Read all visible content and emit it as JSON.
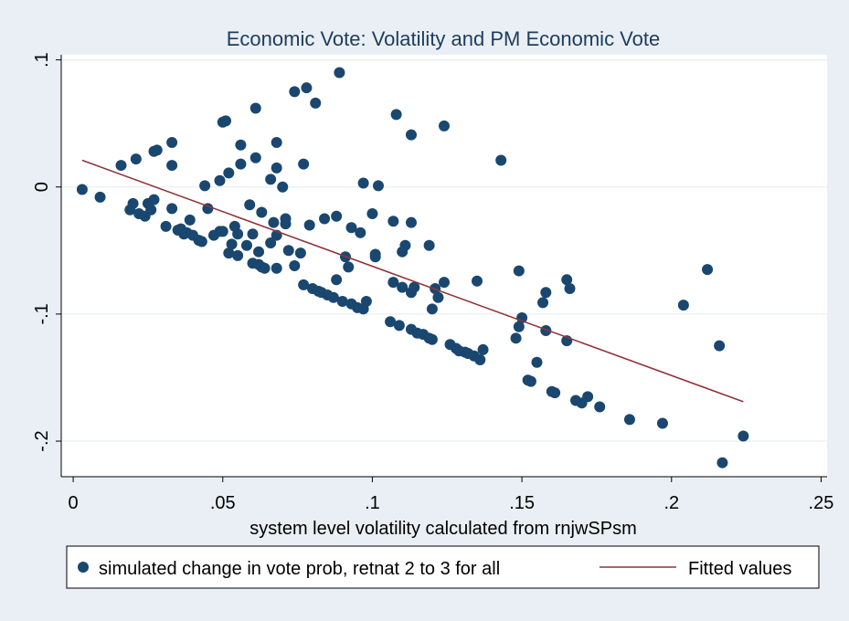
{
  "chart_data": {
    "type": "scatter",
    "title": "Economic Vote: Volatility and PM Economic Vote",
    "xlabel": "system level volatility calculated from rnjwSPsm",
    "ylabel": "",
    "xlim": [
      -0.004,
      0.252
    ],
    "ylim": [
      -0.228,
      0.104
    ],
    "x_ticks": [
      0,
      0.05,
      0.1,
      0.15,
      0.2,
      0.25
    ],
    "x_tick_labels": [
      "0",
      ".05",
      ".1",
      ".15",
      ".2",
      ".25"
    ],
    "y_ticks": [
      0.1,
      0,
      -0.1,
      -0.2
    ],
    "y_tick_labels": [
      ".1",
      "0",
      "-.1",
      "-.2"
    ],
    "grid": "horizontal",
    "legend_position": "bottom",
    "colors": {
      "background": "#e9eff4",
      "plot_area": "#ffffff",
      "points": "#1a476f",
      "line": "#90353b",
      "text": "#000000",
      "title": "#1e3c5c",
      "grid": "#e9eff4"
    },
    "series": [
      {
        "name": "simulated change in vote prob, retnat 2 to 3 for all",
        "kind": "scatter",
        "points": [
          [
            0.003,
            -0.002
          ],
          [
            0.009,
            -0.008
          ],
          [
            0.016,
            0.017
          ],
          [
            0.019,
            -0.018
          ],
          [
            0.02,
            -0.013
          ],
          [
            0.021,
            0.022
          ],
          [
            0.022,
            -0.021
          ],
          [
            0.024,
            -0.023
          ],
          [
            0.025,
            -0.013
          ],
          [
            0.026,
            -0.018
          ],
          [
            0.027,
            -0.01
          ],
          [
            0.027,
            0.028
          ],
          [
            0.028,
            0.029
          ],
          [
            0.031,
            -0.031
          ],
          [
            0.033,
            -0.017
          ],
          [
            0.033,
            0.035
          ],
          [
            0.033,
            0.017
          ],
          [
            0.035,
            -0.034
          ],
          [
            0.036,
            -0.033
          ],
          [
            0.037,
            -0.037
          ],
          [
            0.038,
            -0.036
          ],
          [
            0.039,
            -0.026
          ],
          [
            0.04,
            -0.038
          ],
          [
            0.042,
            -0.042
          ],
          [
            0.043,
            -0.043
          ],
          [
            0.044,
            0.001
          ],
          [
            0.045,
            -0.017
          ],
          [
            0.047,
            -0.038
          ],
          [
            0.049,
            -0.035
          ],
          [
            0.049,
            0.005
          ],
          [
            0.05,
            -0.035
          ],
          [
            0.05,
            0.051
          ],
          [
            0.051,
            0.052
          ],
          [
            0.052,
            -0.052
          ],
          [
            0.052,
            0.011
          ],
          [
            0.053,
            -0.045
          ],
          [
            0.054,
            -0.031
          ],
          [
            0.055,
            -0.054
          ],
          [
            0.055,
            -0.037
          ],
          [
            0.056,
            0.033
          ],
          [
            0.056,
            0.018
          ],
          [
            0.058,
            -0.046
          ],
          [
            0.059,
            -0.014
          ],
          [
            0.06,
            -0.06
          ],
          [
            0.06,
            -0.037
          ],
          [
            0.061,
            0.062
          ],
          [
            0.061,
            0.023
          ],
          [
            0.062,
            -0.061
          ],
          [
            0.062,
            -0.051
          ],
          [
            0.063,
            -0.063
          ],
          [
            0.063,
            -0.02
          ],
          [
            0.064,
            -0.064
          ],
          [
            0.066,
            -0.044
          ],
          [
            0.066,
            0.006
          ],
          [
            0.067,
            -0.028
          ],
          [
            0.068,
            -0.064
          ],
          [
            0.068,
            -0.038
          ],
          [
            0.068,
            0.035
          ],
          [
            0.068,
            0.015
          ],
          [
            0.07,
            0.0
          ],
          [
            0.071,
            -0.025
          ],
          [
            0.071,
            -0.029
          ],
          [
            0.072,
            -0.05
          ],
          [
            0.074,
            -0.062
          ],
          [
            0.074,
            0.075
          ],
          [
            0.076,
            -0.052
          ],
          [
            0.077,
            -0.077
          ],
          [
            0.077,
            0.018
          ],
          [
            0.078,
            0.078
          ],
          [
            0.079,
            -0.03
          ],
          [
            0.08,
            -0.08
          ],
          [
            0.081,
            0.066
          ],
          [
            0.082,
            -0.082
          ],
          [
            0.083,
            -0.083
          ],
          [
            0.084,
            -0.025
          ],
          [
            0.085,
            -0.085
          ],
          [
            0.087,
            -0.087
          ],
          [
            0.088,
            -0.023
          ],
          [
            0.088,
            -0.073
          ],
          [
            0.089,
            0.09
          ],
          [
            0.09,
            -0.09
          ],
          [
            0.091,
            -0.055
          ],
          [
            0.092,
            -0.063
          ],
          [
            0.093,
            -0.092
          ],
          [
            0.093,
            -0.032
          ],
          [
            0.095,
            -0.095
          ],
          [
            0.096,
            -0.036
          ],
          [
            0.097,
            -0.096
          ],
          [
            0.097,
            0.003
          ],
          [
            0.098,
            -0.09
          ],
          [
            0.1,
            -0.021
          ],
          [
            0.101,
            -0.055
          ],
          [
            0.101,
            -0.053
          ],
          [
            0.102,
            0.001
          ],
          [
            0.106,
            -0.106
          ],
          [
            0.107,
            -0.075
          ],
          [
            0.107,
            -0.027
          ],
          [
            0.108,
            0.057
          ],
          [
            0.109,
            -0.109
          ],
          [
            0.11,
            -0.079
          ],
          [
            0.11,
            -0.051
          ],
          [
            0.111,
            -0.046
          ],
          [
            0.113,
            -0.112
          ],
          [
            0.113,
            -0.083
          ],
          [
            0.113,
            -0.028
          ],
          [
            0.113,
            0.041
          ],
          [
            0.114,
            -0.079
          ],
          [
            0.115,
            -0.115
          ],
          [
            0.117,
            -0.116
          ],
          [
            0.119,
            -0.119
          ],
          [
            0.119,
            -0.046
          ],
          [
            0.12,
            -0.096
          ],
          [
            0.12,
            -0.12
          ],
          [
            0.121,
            -0.08
          ],
          [
            0.122,
            -0.087
          ],
          [
            0.124,
            -0.075
          ],
          [
            0.124,
            0.048
          ],
          [
            0.126,
            -0.124
          ],
          [
            0.128,
            -0.127
          ],
          [
            0.129,
            -0.129
          ],
          [
            0.131,
            -0.13
          ],
          [
            0.132,
            -0.131
          ],
          [
            0.134,
            -0.133
          ],
          [
            0.135,
            -0.074
          ],
          [
            0.136,
            -0.136
          ],
          [
            0.137,
            -0.128
          ],
          [
            0.143,
            0.021
          ],
          [
            0.148,
            -0.119
          ],
          [
            0.149,
            -0.11
          ],
          [
            0.149,
            -0.066
          ],
          [
            0.15,
            -0.103
          ],
          [
            0.152,
            -0.152
          ],
          [
            0.153,
            -0.153
          ],
          [
            0.155,
            -0.138
          ],
          [
            0.157,
            -0.091
          ],
          [
            0.158,
            -0.113
          ],
          [
            0.158,
            -0.083
          ],
          [
            0.16,
            -0.161
          ],
          [
            0.161,
            -0.162
          ],
          [
            0.165,
            -0.121
          ],
          [
            0.165,
            -0.073
          ],
          [
            0.166,
            -0.08
          ],
          [
            0.168,
            -0.168
          ],
          [
            0.17,
            -0.17
          ],
          [
            0.172,
            -0.165
          ],
          [
            0.176,
            -0.173
          ],
          [
            0.186,
            -0.183
          ],
          [
            0.197,
            -0.186
          ],
          [
            0.204,
            -0.093
          ],
          [
            0.212,
            -0.065
          ],
          [
            0.216,
            -0.125
          ],
          [
            0.217,
            -0.217
          ],
          [
            0.224,
            -0.196
          ]
        ]
      },
      {
        "name": "Fitted values",
        "kind": "line",
        "points": [
          [
            0.003,
            0.021
          ],
          [
            0.224,
            -0.169
          ]
        ]
      }
    ]
  }
}
